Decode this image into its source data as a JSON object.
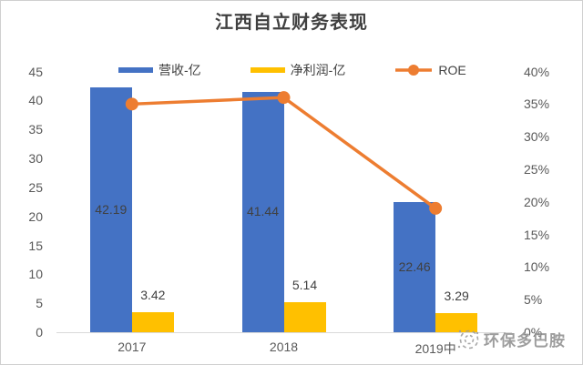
{
  "chart_data": {
    "type": "bar",
    "subtype": "combo-bar-line-dual-axis",
    "title": "江西自立财务表现",
    "categories": [
      "2017",
      "2018",
      "2019中"
    ],
    "series": [
      {
        "name": "营收-亿",
        "type": "bar",
        "axis": "left",
        "color": "#4472C4",
        "values": [
          42.19,
          41.44,
          22.46
        ],
        "data_labels": [
          "42.19",
          "41.44",
          "22.46"
        ],
        "label_position": "inside-center"
      },
      {
        "name": "净利润-亿",
        "type": "bar",
        "axis": "left",
        "color": "#FFC000",
        "values": [
          3.42,
          5.14,
          3.29
        ],
        "data_labels": [
          "3.42",
          "5.14",
          "3.29"
        ],
        "label_position": "above-bar"
      },
      {
        "name": "ROE",
        "type": "line",
        "axis": "right",
        "color": "#ED7D31",
        "unit": "%",
        "values": [
          35,
          36,
          19
        ]
      }
    ],
    "left_axis": {
      "min": 0,
      "max": 45,
      "step": 5,
      "tick_labels": [
        "45",
        "40",
        "35",
        "30",
        "25",
        "20",
        "15",
        "10",
        "5",
        "0"
      ]
    },
    "right_axis": {
      "min": 0,
      "max": 40,
      "step": 5,
      "tick_labels": [
        "40%",
        "35%",
        "30%",
        "25%",
        "20%",
        "15%",
        "10%",
        "5%",
        "0%"
      ]
    },
    "legend_position": "top",
    "gridlines": false
  },
  "watermark": {
    "text": "环保多巴胺",
    "icon": "dotted-circle-logo"
  },
  "colors": {
    "revenue_bar": "#4472C4",
    "profit_bar": "#FFC000",
    "roe_line": "#ED7D31",
    "title_text": "#404040",
    "axis_text": "#595959",
    "data_label_text": "#404040",
    "axis_line": "#D9D9D9",
    "watermark": "#8C8C8C",
    "background": "#FFFFFF"
  }
}
